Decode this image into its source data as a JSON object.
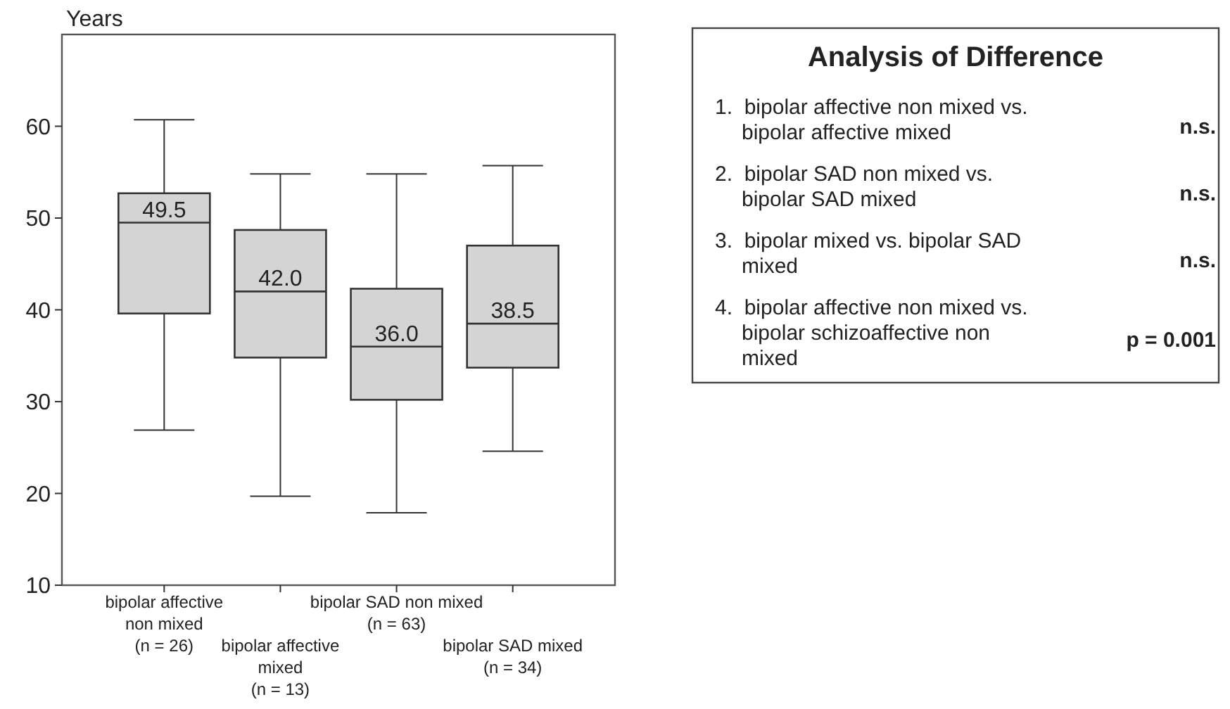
{
  "chart_data": [
    {
      "type": "box",
      "ylabel": "Years",
      "categories": [
        "bipolar affective\nnon mixed\n(n = 26)",
        "bipolar affective\nmixed\n(n = 13)",
        "bipolar SAD non mixed\n(n = 63)",
        "bipolar SAD mixed\n(n = 34)"
      ],
      "boxes": [
        {
          "low": 26.9,
          "q1": 39.6,
          "median": 49.5,
          "q3": 52.7,
          "high": 60.7
        },
        {
          "low": 19.7,
          "q1": 34.8,
          "median": 42.0,
          "q3": 48.7,
          "high": 54.8
        },
        {
          "low": 17.9,
          "q1": 30.2,
          "median": 36.0,
          "q3": 42.3,
          "high": 54.8
        },
        {
          "low": 24.6,
          "q1": 33.7,
          "median": 38.5,
          "q3": 47.0,
          "high": 55.7
        }
      ],
      "value_labels": [
        "49.5",
        "42.0",
        "36.0",
        "38.5"
      ],
      "color": "#d4d4d4",
      "ylim": [
        10,
        70
      ],
      "yticks": [
        10,
        20,
        30,
        40,
        50,
        60
      ]
    },
    {
      "type": "other",
      "title": "Analysis of Difference",
      "annotations": [
        "1.  bipolar affective non mixed vs.\nbipolar affective mixed",
        "n.s.",
        "2.  bipolar SAD non mixed vs.\nbipolar SAD mixed",
        "n.s.",
        "3.  bipolar mixed vs. bipolar SAD\nmixed",
        "n.s.",
        "4.  bipolar affective non mixed vs.\nbipolar schizoaffective non\nmixed",
        "p = 0.001"
      ]
    }
  ]
}
